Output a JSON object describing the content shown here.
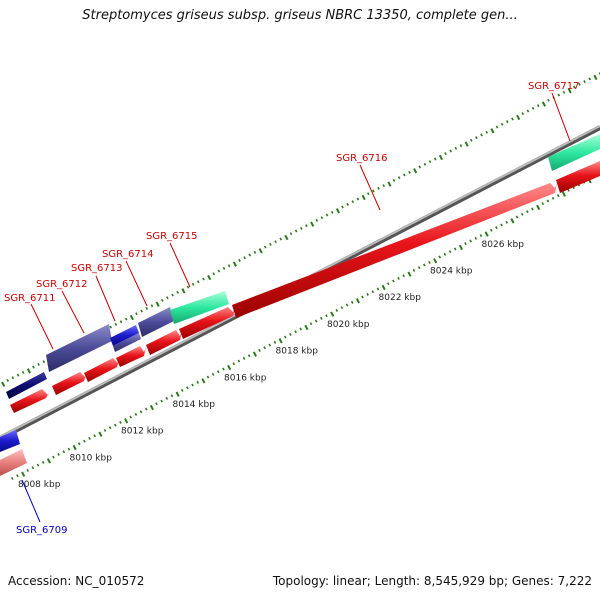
{
  "title": "Streptomyces griseus subsp. griseus NBRC 13350, complete gen...",
  "footer": {
    "accession": "Accession: NC_010572",
    "summary": "Topology: linear; Length: 8,545,929 bp; Genes: 7,222"
  },
  "colors": {
    "plus_cds": "#e8141a",
    "minus_cds_dark": "#0b0b6e",
    "minus_cds_slate": "#4c4c9a",
    "minus_cds_blue": "#1a1acc",
    "rna": "#2ee8a0",
    "pink_cds": "#e88080",
    "backbone": "#888888",
    "ticks": "#2a7a1a",
    "plus_label": "#cc0000",
    "minus_label": "#0000cc"
  },
  "scale": {
    "unit": "kbp",
    "labels": [
      "8008 kbp",
      "8010 kbp",
      "8012 kbp",
      "8014 kbp",
      "8016 kbp",
      "8018 kbp",
      "8020 kbp",
      "8022 kbp",
      "8024 kbp",
      "8026 kbp"
    ]
  },
  "genes": [
    {
      "id": "SGR_6709",
      "strand": "minus",
      "color": "pink"
    },
    {
      "id": "SGR_6711",
      "strand": "minus",
      "color": "dark"
    },
    {
      "id": "SGR_6712",
      "strand": "minus",
      "color": "slate"
    },
    {
      "id": "SGR_6713",
      "strand": "minus",
      "color": "blue"
    },
    {
      "id": "SGR_6714",
      "strand": "minus",
      "color": "slate"
    },
    {
      "id": "SGR_6715",
      "strand": "minus",
      "color": "rna"
    },
    {
      "id": "SGR_6716",
      "strand": "plus",
      "color": "plus"
    },
    {
      "id": "SGR_6717",
      "strand": "minus",
      "color": "rna"
    }
  ]
}
